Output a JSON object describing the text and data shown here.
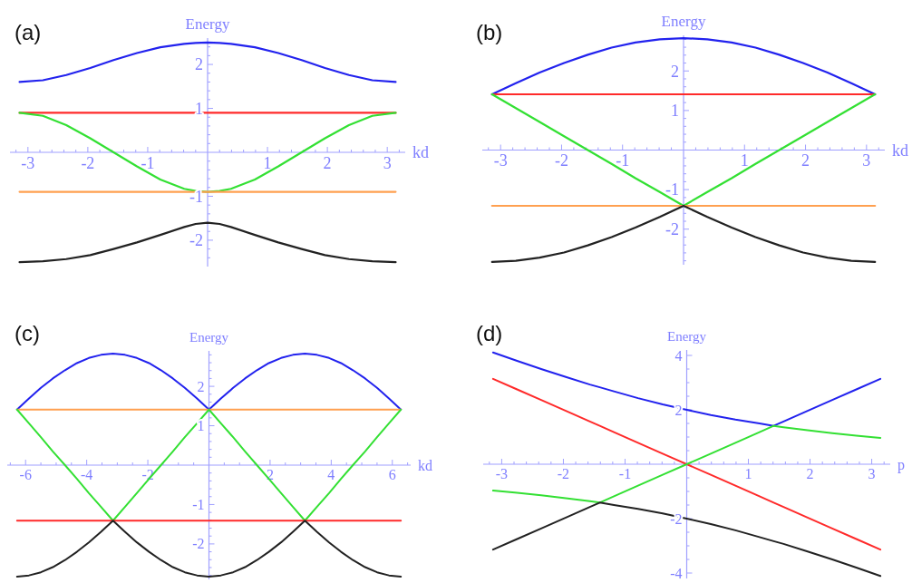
{
  "chart_data": [
    {
      "type": "line",
      "title": "(a)",
      "xlabel": "kd",
      "ylabel": "Energy",
      "xlim": [
        -3.3,
        3.3
      ],
      "ylim": [
        -2.6,
        2.6
      ],
      "xticks": [
        {
          "value": -3.2,
          "label": null
        },
        -3,
        {
          "value": -2.8,
          "label": null
        },
        {
          "value": -2.6,
          "label": null
        },
        {
          "value": -2.4,
          "label": null
        },
        {
          "value": -2.2,
          "label": null
        },
        -2,
        {
          "value": -1.8,
          "label": null
        },
        {
          "value": -1.6,
          "label": null
        },
        {
          "value": -1.4,
          "label": null
        },
        {
          "value": -1.2,
          "label": null
        },
        -1,
        {
          "value": -0.8,
          "label": null
        },
        {
          "value": -0.6,
          "label": null
        },
        {
          "value": -0.4,
          "label": null
        },
        {
          "value": -0.2,
          "label": null
        },
        {
          "value": 0.2,
          "label": null
        },
        {
          "value": 0.4,
          "label": null
        },
        {
          "value": 0.6,
          "label": null
        },
        {
          "value": 0.8,
          "label": null
        },
        1,
        {
          "value": 1.2,
          "label": null
        },
        {
          "value": 1.4,
          "label": null
        },
        {
          "value": 1.6,
          "label": null
        },
        {
          "value": 1.8,
          "label": null
        },
        2,
        {
          "value": 2.2,
          "label": null
        },
        {
          "value": 2.4,
          "label": null
        },
        {
          "value": 2.6,
          "label": null
        },
        {
          "value": 2.8,
          "label": null
        },
        3,
        {
          "value": 3.2,
          "label": null
        }
      ],
      "yticks": [
        {
          "value": -2.4,
          "label": null
        },
        {
          "value": -2.2,
          "label": null
        },
        -2,
        {
          "value": -1.8,
          "label": null
        },
        {
          "value": -1.6,
          "label": null
        },
        {
          "value": -1.4,
          "label": null
        },
        {
          "value": -1.2,
          "label": null
        },
        -1,
        {
          "value": -0.8,
          "label": null
        },
        {
          "value": -0.6,
          "label": null
        },
        {
          "value": -0.4,
          "label": null
        },
        {
          "value": -0.2,
          "label": null
        },
        {
          "value": 0.2,
          "label": null
        },
        {
          "value": 0.4,
          "label": null
        },
        {
          "value": 0.6,
          "label": null
        },
        {
          "value": 0.8,
          "label": null
        },
        1,
        {
          "value": 1.2,
          "label": null
        },
        {
          "value": 1.4,
          "label": null
        },
        {
          "value": 1.6,
          "label": null
        },
        {
          "value": 1.8,
          "label": null
        },
        2,
        {
          "value": 2.2,
          "label": null
        },
        {
          "value": 2.4,
          "label": null
        }
      ],
      "x": [
        -3.14,
        -2.75,
        -2.36,
        -1.96,
        -1.57,
        -1.18,
        -0.79,
        -0.39,
        -0.2,
        0,
        0.2,
        0.39,
        0.79,
        1.18,
        1.57,
        1.96,
        2.36,
        2.75,
        3.14
      ],
      "series": [
        {
          "color": "#2222ee",
          "values": [
            1.6,
            1.64,
            1.76,
            1.92,
            2.1,
            2.26,
            2.39,
            2.47,
            2.49,
            2.5,
            2.49,
            2.47,
            2.39,
            2.26,
            2.1,
            1.92,
            1.76,
            1.64,
            1.6
          ]
        },
        {
          "color": "#ff2a2a",
          "values": [
            0.9,
            0.9,
            0.9,
            0.9,
            0.9,
            0.9,
            0.9,
            0.9,
            0.9,
            0.9,
            0.9,
            0.9,
            0.9,
            0.9,
            0.9,
            0.9,
            0.9,
            0.9,
            0.9
          ]
        },
        {
          "color": "#33e033",
          "values": [
            0.9,
            0.83,
            0.62,
            0.32,
            0,
            -0.32,
            -0.62,
            -0.83,
            -0.88,
            -0.9,
            -0.88,
            -0.83,
            -0.62,
            -0.32,
            0,
            0.32,
            0.62,
            0.83,
            0.9
          ]
        },
        {
          "color": "#ffa050",
          "values": [
            -0.9,
            -0.9,
            -0.9,
            -0.9,
            -0.9,
            -0.9,
            -0.9,
            -0.9,
            -0.9,
            -0.9,
            -0.9,
            -0.9,
            -0.9,
            -0.9,
            -0.9,
            -0.9,
            -0.9,
            -0.9,
            -0.9
          ]
        },
        {
          "color": "#222222",
          "values": [
            -2.5,
            -2.48,
            -2.43,
            -2.34,
            -2.2,
            -2.05,
            -1.88,
            -1.7,
            -1.63,
            -1.6,
            -1.63,
            -1.7,
            -1.88,
            -2.05,
            -2.2,
            -2.34,
            -2.43,
            -2.48,
            -2.5
          ]
        }
      ]
    },
    {
      "type": "line",
      "title": "(b)",
      "xlabel": "kd",
      "ylabel": "Energy",
      "xlim": [
        -3.3,
        3.3
      ],
      "ylim": [
        -2.9,
        2.9
      ],
      "xticks": [
        {
          "value": -3.2,
          "label": null
        },
        -3,
        {
          "value": -2.8,
          "label": null
        },
        {
          "value": -2.6,
          "label": null
        },
        {
          "value": -2.4,
          "label": null
        },
        {
          "value": -2.2,
          "label": null
        },
        -2,
        {
          "value": -1.8,
          "label": null
        },
        {
          "value": -1.6,
          "label": null
        },
        {
          "value": -1.4,
          "label": null
        },
        {
          "value": -1.2,
          "label": null
        },
        -1,
        {
          "value": -0.8,
          "label": null
        },
        {
          "value": -0.6,
          "label": null
        },
        {
          "value": -0.4,
          "label": null
        },
        {
          "value": -0.2,
          "label": null
        },
        {
          "value": 0.2,
          "label": null
        },
        {
          "value": 0.4,
          "label": null
        },
        {
          "value": 0.6,
          "label": null
        },
        {
          "value": 0.8,
          "label": null
        },
        1,
        {
          "value": 1.2,
          "label": null
        },
        {
          "value": 1.4,
          "label": null
        },
        {
          "value": 1.6,
          "label": null
        },
        {
          "value": 1.8,
          "label": null
        },
        2,
        {
          "value": 2.2,
          "label": null
        },
        {
          "value": 2.4,
          "label": null
        },
        {
          "value": 2.6,
          "label": null
        },
        {
          "value": 2.8,
          "label": null
        },
        3,
        {
          "value": 3.2,
          "label": null
        }
      ],
      "yticks": [
        {
          "value": -2.8,
          "label": null
        },
        {
          "value": -2.6,
          "label": null
        },
        {
          "value": -2.4,
          "label": null
        },
        {
          "value": -2.2,
          "label": null
        },
        -2,
        {
          "value": -1.8,
          "label": null
        },
        {
          "value": -1.6,
          "label": null
        },
        {
          "value": -1.4,
          "label": null
        },
        {
          "value": -1.2,
          "label": null
        },
        -1,
        {
          "value": -0.8,
          "label": null
        },
        {
          "value": -0.6,
          "label": null
        },
        {
          "value": -0.4,
          "label": null
        },
        {
          "value": -0.2,
          "label": null
        },
        {
          "value": 0.2,
          "label": null
        },
        {
          "value": 0.4,
          "label": null
        },
        {
          "value": 0.6,
          "label": null
        },
        {
          "value": 0.8,
          "label": null
        },
        1,
        {
          "value": 1.2,
          "label": null
        },
        {
          "value": 1.4,
          "label": null
        },
        {
          "value": 1.6,
          "label": null
        },
        {
          "value": 1.8,
          "label": null
        },
        2,
        {
          "value": 2.2,
          "label": null
        },
        {
          "value": 2.4,
          "label": null
        },
        {
          "value": 2.6,
          "label": null
        },
        {
          "value": 2.8,
          "label": null
        }
      ],
      "x": [
        -3.14,
        -2.75,
        -2.36,
        -1.96,
        -1.57,
        -1.18,
        -0.79,
        -0.39,
        0,
        0.39,
        0.79,
        1.18,
        1.57,
        1.96,
        2.36,
        2.75,
        3.14
      ],
      "series": [
        {
          "color": "#2222ee",
          "values": [
            1.41,
            1.69,
            1.96,
            2.2,
            2.41,
            2.59,
            2.72,
            2.8,
            2.83,
            2.8,
            2.72,
            2.59,
            2.41,
            2.2,
            1.96,
            1.69,
            1.41
          ]
        },
        {
          "color": "#ff2a2a",
          "values": [
            1.41,
            1.41,
            1.41,
            1.41,
            1.41,
            1.41,
            1.41,
            1.41,
            1.41,
            1.41,
            1.41,
            1.41,
            1.41,
            1.41,
            1.41,
            1.41,
            1.41
          ]
        },
        {
          "color": "#33e033",
          "values": [
            1.41,
            1.06,
            0.71,
            0.35,
            0,
            -0.35,
            -0.71,
            -1.06,
            -1.41,
            -1.06,
            -0.71,
            -0.35,
            0,
            0.35,
            0.71,
            1.06,
            1.41
          ]
        },
        {
          "color": "#ffa050",
          "values": [
            -1.41,
            -1.41,
            -1.41,
            -1.41,
            -1.41,
            -1.41,
            -1.41,
            -1.41,
            -1.41,
            -1.41,
            -1.41,
            -1.41,
            -1.41,
            -1.41,
            -1.41,
            -1.41,
            -1.41
          ]
        },
        {
          "color": "#222222",
          "values": [
            -2.83,
            -2.8,
            -2.72,
            -2.59,
            -2.41,
            -2.2,
            -1.96,
            -1.69,
            -1.41,
            -1.69,
            -1.96,
            -2.2,
            -2.41,
            -2.59,
            -2.72,
            -2.8,
            -2.83
          ]
        }
      ]
    },
    {
      "type": "line",
      "title": "(c)",
      "xlabel": "kd",
      "ylabel": "Energy",
      "xlim": [
        -6.6,
        6.6
      ],
      "ylim": [
        -2.9,
        2.9
      ],
      "xticks": [
        {
          "value": -6.5,
          "label": null
        },
        -6,
        {
          "value": -5.5,
          "label": null
        },
        {
          "value": -5,
          "label": null
        },
        {
          "value": -4.5,
          "label": null
        },
        -4,
        {
          "value": -3.5,
          "label": null
        },
        {
          "value": -3,
          "label": null
        },
        {
          "value": -2.5,
          "label": null
        },
        -2,
        {
          "value": -1.5,
          "label": null
        },
        {
          "value": -1,
          "label": null
        },
        {
          "value": -0.5,
          "label": null
        },
        {
          "value": 0.5,
          "label": null
        },
        {
          "value": 1,
          "label": null
        },
        {
          "value": 1.5,
          "label": null
        },
        2,
        {
          "value": 2.5,
          "label": null
        },
        {
          "value": 3,
          "label": null
        },
        {
          "value": 3.5,
          "label": null
        },
        4,
        {
          "value": 4.5,
          "label": null
        },
        {
          "value": 5,
          "label": null
        },
        {
          "value": 5.5,
          "label": null
        },
        6,
        {
          "value": 6.5,
          "label": null
        }
      ],
      "yticks": [
        {
          "value": -2.8,
          "label": null
        },
        {
          "value": -2.6,
          "label": null
        },
        {
          "value": -2.4,
          "label": null
        },
        {
          "value": -2.2,
          "label": null
        },
        -2,
        {
          "value": -1.8,
          "label": null
        },
        {
          "value": -1.6,
          "label": null
        },
        {
          "value": -1.4,
          "label": null
        },
        {
          "value": -1.2,
          "label": null
        },
        -1,
        {
          "value": -0.8,
          "label": null
        },
        {
          "value": -0.6,
          "label": null
        },
        {
          "value": -0.4,
          "label": null
        },
        {
          "value": -0.2,
          "label": null
        },
        {
          "value": 0.2,
          "label": null
        },
        {
          "value": 0.4,
          "label": null
        },
        {
          "value": 0.6,
          "label": null
        },
        {
          "value": 0.8,
          "label": null
        },
        1,
        {
          "value": 1.2,
          "label": null
        },
        {
          "value": 1.4,
          "label": null
        },
        {
          "value": 1.6,
          "label": null
        },
        {
          "value": 1.8,
          "label": null
        },
        2,
        {
          "value": 2.2,
          "label": null
        },
        {
          "value": 2.4,
          "label": null
        },
        {
          "value": 2.6,
          "label": null
        },
        {
          "value": 2.8,
          "label": null
        }
      ],
      "x": [
        -6.28,
        -5.89,
        -5.5,
        -5.11,
        -4.71,
        -4.32,
        -3.93,
        -3.53,
        -3.14,
        -2.75,
        -2.36,
        -1.96,
        -1.57,
        -1.18,
        -0.79,
        -0.39,
        0,
        0.39,
        0.79,
        1.18,
        1.57,
        1.96,
        2.36,
        2.75,
        3.14,
        3.53,
        3.93,
        4.32,
        4.71,
        5.11,
        5.5,
        5.89,
        6.28
      ],
      "series": [
        {
          "color": "#2222ee",
          "values": [
            1.41,
            1.69,
            1.96,
            2.2,
            2.41,
            2.59,
            2.72,
            2.8,
            2.83,
            2.8,
            2.72,
            2.59,
            2.41,
            2.2,
            1.96,
            1.69,
            1.41,
            1.69,
            1.96,
            2.2,
            2.41,
            2.59,
            2.72,
            2.8,
            2.83,
            2.8,
            2.72,
            2.59,
            2.41,
            2.2,
            1.96,
            1.69,
            1.41
          ]
        },
        {
          "color": "#ffa050",
          "values": [
            1.41,
            1.41,
            1.41,
            1.41,
            1.41,
            1.41,
            1.41,
            1.41,
            1.41,
            1.41,
            1.41,
            1.41,
            1.41,
            1.41,
            1.41,
            1.41,
            1.41,
            1.41,
            1.41,
            1.41,
            1.41,
            1.41,
            1.41,
            1.41,
            1.41,
            1.41,
            1.41,
            1.41,
            1.41,
            1.41,
            1.41,
            1.41,
            1.41
          ]
        },
        {
          "color": "#33e033",
          "values": [
            1.41,
            1.06,
            0.71,
            0.35,
            0,
            -0.35,
            -0.71,
            -1.06,
            -1.41,
            -1.06,
            -0.71,
            -0.35,
            0,
            0.35,
            0.71,
            1.06,
            1.41,
            1.06,
            0.71,
            0.35,
            0,
            -0.35,
            -0.71,
            -1.06,
            -1.41,
            -1.06,
            -0.71,
            -0.35,
            0,
            0.35,
            0.71,
            1.06,
            1.41
          ]
        },
        {
          "color": "#ff2a2a",
          "values": [
            -1.41,
            -1.41,
            -1.41,
            -1.41,
            -1.41,
            -1.41,
            -1.41,
            -1.41,
            -1.41,
            -1.41,
            -1.41,
            -1.41,
            -1.41,
            -1.41,
            -1.41,
            -1.41,
            -1.41,
            -1.41,
            -1.41,
            -1.41,
            -1.41,
            -1.41,
            -1.41,
            -1.41,
            -1.41,
            -1.41,
            -1.41,
            -1.41,
            -1.41,
            -1.41,
            -1.41,
            -1.41,
            -1.41
          ]
        },
        {
          "color": "#222222",
          "values": [
            -2.83,
            -2.8,
            -2.72,
            -2.59,
            -2.41,
            -2.2,
            -1.96,
            -1.69,
            -1.41,
            -1.69,
            -1.96,
            -2.2,
            -2.41,
            -2.59,
            -2.72,
            -2.8,
            -2.83,
            -2.8,
            -2.72,
            -2.59,
            -2.41,
            -2.2,
            -1.96,
            -1.69,
            -1.41,
            -1.69,
            -1.96,
            -2.2,
            -2.41,
            -2.59,
            -2.72,
            -2.8,
            -2.83
          ]
        }
      ]
    },
    {
      "type": "line",
      "title": "(d)",
      "xlabel": "p",
      "ylabel": "Energy",
      "xlim": [
        -3.3,
        3.3
      ],
      "ylim": [
        -4.2,
        4.2
      ],
      "xticks": [
        {
          "value": -3.2,
          "label": null
        },
        -3,
        {
          "value": -2.8,
          "label": null
        },
        {
          "value": -2.6,
          "label": null
        },
        {
          "value": -2.4,
          "label": null
        },
        {
          "value": -2.2,
          "label": null
        },
        -2,
        {
          "value": -1.8,
          "label": null
        },
        {
          "value": -1.6,
          "label": null
        },
        {
          "value": -1.4,
          "label": null
        },
        {
          "value": -1.2,
          "label": null
        },
        -1,
        {
          "value": -0.8,
          "label": null
        },
        {
          "value": -0.6,
          "label": null
        },
        {
          "value": -0.4,
          "label": null
        },
        {
          "value": -0.2,
          "label": null
        },
        {
          "value": 0.2,
          "label": null
        },
        {
          "value": 0.4,
          "label": null
        },
        {
          "value": 0.6,
          "label": null
        },
        {
          "value": 0.8,
          "label": null
        },
        1,
        {
          "value": 1.2,
          "label": null
        },
        {
          "value": 1.4,
          "label": null
        },
        {
          "value": 1.6,
          "label": null
        },
        {
          "value": 1.8,
          "label": null
        },
        2,
        {
          "value": 2.2,
          "label": null
        },
        {
          "value": 2.4,
          "label": null
        },
        {
          "value": 2.6,
          "label": null
        },
        {
          "value": 2.8,
          "label": null
        },
        3,
        {
          "value": 3.2,
          "label": null
        }
      ],
      "yticks": [
        -4,
        {
          "value": -3.5,
          "label": null
        },
        {
          "value": -3,
          "label": null
        },
        {
          "value": -2.5,
          "label": null
        },
        -2,
        {
          "value": -1.5,
          "label": null
        },
        {
          "value": -1,
          "label": null
        },
        {
          "value": -0.5,
          "label": null
        },
        {
          "value": 0.5,
          "label": null
        },
        {
          "value": 1,
          "label": null
        },
        {
          "value": 1.5,
          "label": null
        },
        2,
        {
          "value": 2.5,
          "label": null
        },
        {
          "value": 3,
          "label": null
        },
        {
          "value": 3.5,
          "label": null
        },
        4
      ],
      "x": [
        -3.14,
        -2.75,
        -2.36,
        -1.96,
        -1.57,
        -1.41,
        -1.18,
        -0.79,
        -0.39,
        0,
        0.39,
        0.79,
        1.18,
        1.41,
        1.57,
        1.96,
        2.36,
        2.75,
        3.14
      ],
      "series": [
        {
          "color": "#2222ee",
          "values": [
            4.11,
            3.8,
            3.5,
            3.21,
            2.93,
            2.83,
            2.68,
            2.43,
            2.2,
            2,
            1.81,
            1.64,
            1.5,
            1.41,
            1.57,
            1.96,
            2.36,
            2.75,
            3.14
          ]
        },
        {
          "color": "#ff2a2a",
          "values": [
            3.14,
            2.75,
            2.36,
            1.96,
            1.57,
            1.41,
            1.18,
            0.79,
            0.39,
            0,
            -0.39,
            -0.79,
            -1.18,
            -1.41,
            -1.57,
            -1.96,
            -2.36,
            -2.75,
            -3.14
          ]
        },
        {
          "color": "#33e033",
          "values": [
            -0.97,
            -1.05,
            -1.14,
            -1.25,
            -1.36,
            -1.41,
            -1.18,
            -0.79,
            -0.39,
            0,
            0.39,
            0.79,
            1.18,
            1.41,
            1.36,
            1.25,
            1.14,
            1.05,
            0.97
          ]
        },
        {
          "color": "#222222",
          "values": [
            -3.14,
            -2.75,
            -2.36,
            -1.96,
            -1.57,
            -1.41,
            -1.5,
            -1.64,
            -1.81,
            -2,
            -2.2,
            -2.43,
            -2.68,
            -2.83,
            -2.93,
            -3.21,
            -3.5,
            -3.8,
            -4.11
          ]
        }
      ]
    }
  ]
}
